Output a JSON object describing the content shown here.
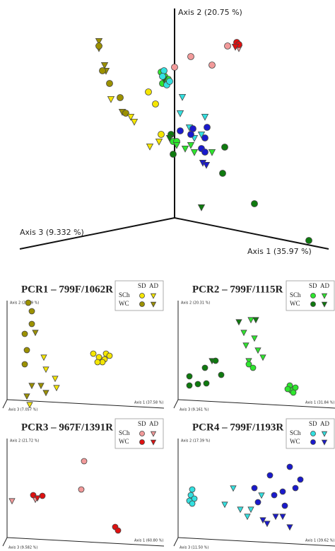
{
  "chart_data": [
    {
      "type": "scatter3d",
      "xlabel": "Axis 1 (35.97 %)",
      "ylabel": "Axis 2 (20.75 %)",
      "zlabel": "Axis 3 (9.332 %)",
      "xlim": [
        0,
        470
      ],
      "ylim": [
        0,
        360
      ],
      "series": [
        {
          "color": "#9c9100",
          "marker": "triangle",
          "x": [
            140,
            140,
            148,
            150,
            173
          ],
          "y": [
            302,
            292,
            268,
            260,
            202
          ]
        },
        {
          "color": "#9c9100",
          "marker": "circle",
          "x": [
            140,
            145,
            155,
            170,
            178
          ],
          "y": [
            295,
            260,
            242,
            222,
            200
          ]
        },
        {
          "color": "#f5e600",
          "marker": "circle",
          "x": [
            210,
            220,
            228
          ],
          "y": [
            230,
            213,
            170
          ]
        },
        {
          "color": "#f5e600",
          "marker": "triangle",
          "x": [
            157,
            185,
            190,
            212,
            225
          ],
          "y": [
            220,
            195,
            188,
            153,
            160
          ]
        },
        {
          "color": "#2ee62e",
          "marker": "circle",
          "x": [
            228,
            233,
            238,
            230,
            245,
            250
          ],
          "y": [
            258,
            252,
            248,
            242,
            160,
            160
          ]
        },
        {
          "color": "#2ee62e",
          "marker": "triangle",
          "x": [
            250,
            262,
            270,
            275,
            300
          ],
          "y": [
            155,
            150,
            155,
            145,
            145
          ]
        },
        {
          "color": "#0f7a0f",
          "marker": "circle",
          "x": [
            245,
            318,
            315,
            360,
            437,
            242
          ],
          "y": [
            142,
            152,
            115,
            72,
            20,
            170
          ]
        },
        {
          "color": "#0f7a0f",
          "marker": "triangle",
          "x": [
            285,
            232,
            240
          ],
          "y": [
            67,
            248,
            165
          ]
        },
        {
          "color": "#33e0e0",
          "marker": "circle",
          "x": [
            232,
            230,
            236,
            240
          ],
          "y": [
            260,
            252,
            240,
            245
          ]
        },
        {
          "color": "#33e0e0",
          "marker": "triangle",
          "x": [
            258,
            290,
            255,
            275,
            285,
            268
          ],
          "y": [
            223,
            195,
            200,
            165,
            170,
            180
          ]
        },
        {
          "color": "#1a1acc",
          "marker": "circle",
          "x": [
            255,
            273,
            290,
            293,
            285,
            290,
            270
          ],
          "y": [
            175,
            178,
            165,
            180,
            150,
            145,
            170
          ]
        },
        {
          "color": "#1a1acc",
          "marker": "triangle",
          "x": [
            287,
            292
          ],
          "y": [
            130,
            127
          ]
        },
        {
          "color": "#f29a9a",
          "marker": "circle",
          "x": [
            270,
            247,
            300,
            322
          ],
          "y": [
            280,
            265,
            268,
            295
          ]
        },
        {
          "color": "#f29a9a",
          "marker": "triangle",
          "x": [
            338
          ],
          "y": [
            292
          ]
        },
        {
          "color": "#e01010",
          "marker": "circle",
          "x": [
            335,
            338
          ],
          "y": [
            300,
            297
          ]
        },
        {
          "color": "#e01010",
          "marker": "triangle",
          "x": [
            333
          ],
          "y": [
            294
          ]
        }
      ]
    },
    {
      "type": "scatter3d",
      "title": "PCR1 – 799F/1062R",
      "xlabel": "Axis 1 (37.58 %)",
      "ylabel": "Axis 2 (27.99 %)",
      "zlabel": "Axis 3 (7.057 %)",
      "xlim": [
        0,
        232
      ],
      "ylim": [
        0,
        160
      ],
      "legend": {
        "columns": [
          "SD",
          "AD"
        ],
        "rows": [
          "SCh",
          "WC"
        ],
        "colors": [
          [
            "#f5e600",
            "#f5e600"
          ],
          [
            "#9c9100",
            "#9c9100"
          ]
        ]
      },
      "series": [
        {
          "color": "#9c9100",
          "marker": "circle",
          "x": [
            40,
            45,
            45,
            35,
            38,
            35
          ],
          "y": [
            147,
            135,
            117,
            103,
            80,
            60
          ]
        },
        {
          "color": "#9c9100",
          "marker": "triangle",
          "x": [
            50,
            58,
            65,
            45,
            38
          ],
          "y": [
            105,
            30,
            20,
            30,
            15
          ]
        },
        {
          "color": "#f5e600",
          "marker": "triangle",
          "x": [
            62,
            65,
            78,
            80,
            42
          ],
          "y": [
            70,
            53,
            40,
            27,
            3
          ]
        },
        {
          "color": "#f5e600",
          "marker": "circle",
          "x": [
            132,
            140,
            150,
            148,
            155,
            145,
            138
          ],
          "y": [
            75,
            70,
            75,
            67,
            72,
            63,
            63
          ]
        }
      ]
    },
    {
      "type": "scatter3d",
      "title": "PCR2 – 799F/1115R",
      "xlabel": "Axis 1 (31.84 %)",
      "ylabel": "Axis 2 (20.31 %)",
      "zlabel": "Axis 3 (9.161 %)",
      "xlim": [
        0,
        232
      ],
      "ylim": [
        0,
        160
      ],
      "legend": {
        "columns": [
          "SD",
          "AD"
        ],
        "rows": [
          "SCh",
          "WC"
        ],
        "colors": [
          [
            "#2ee62e",
            "#2ee62e"
          ],
          [
            "#0f7a0f",
            "#0f7a0f"
          ]
        ]
      },
      "series": [
        {
          "color": "#2ee62e",
          "marker": "triangle",
          "x": [
            113,
            103,
            118,
            106,
            123,
            110,
            130
          ],
          "y": [
            123,
            105,
            97,
            87,
            80,
            65,
            70
          ]
        },
        {
          "color": "#2ee62e",
          "marker": "circle",
          "x": [
            110,
            116,
            168,
            170,
            176,
            165,
            173
          ],
          "y": [
            60,
            55,
            30,
            23,
            27,
            25,
            20
          ]
        },
        {
          "color": "#0f7a0f",
          "marker": "triangle",
          "x": [
            96,
            120,
            58
          ],
          "y": [
            120,
            123,
            65
          ]
        },
        {
          "color": "#0f7a0f",
          "marker": "circle",
          "x": [
            26,
            38,
            48,
            63,
            71,
            50,
            26
          ],
          "y": [
            43,
            32,
            55,
            65,
            45,
            33,
            30
          ]
        }
      ]
    },
    {
      "type": "scatter3d",
      "title": "PCR3 – 967F/1391R",
      "xlabel": "Axis 1 (60.80 %)",
      "ylabel": "Axis 2 (21.72 %)",
      "zlabel": "Axis 3 (9.582 %)",
      "xlim": [
        0,
        232
      ],
      "ylim": [
        0,
        160
      ],
      "legend": {
        "columns": [
          "SD",
          "AD"
        ],
        "rows": [
          "SCh",
          "WC"
        ],
        "colors": [
          [
            "#f29a9a",
            "#f29a9a"
          ],
          [
            "#e01010",
            "#e01010"
          ]
        ]
      },
      "series": [
        {
          "color": "#f29a9a",
          "marker": "circle",
          "x": [
            119,
            115
          ],
          "y": [
            118,
            78
          ]
        },
        {
          "color": "#f29a9a",
          "marker": "triangle",
          "x": [
            17,
            50
          ],
          "y": [
            62,
            64
          ]
        },
        {
          "color": "#e01010",
          "marker": "circle",
          "x": [
            47,
            60,
            163,
            167
          ],
          "y": [
            70,
            69,
            25,
            20
          ]
        },
        {
          "color": "#e01010",
          "marker": "triangle",
          "x": [
            53
          ],
          "y": [
            66
          ]
        }
      ]
    },
    {
      "type": "scatter3d",
      "title": "PCR4 – 799F/1193R",
      "xlabel": "Axis 1 (39.62 %)",
      "ylabel": "Axis 2 (17.39 %)",
      "zlabel": "Axis 3 (11.50 %)",
      "xlim": [
        0,
        232
      ],
      "ylim": [
        0,
        160
      ],
      "legend": {
        "columns": [
          "SD",
          "AD"
        ],
        "rows": [
          "SCh",
          "WC"
        ],
        "colors": [
          [
            "#33e0e0",
            "#33e0e0"
          ],
          [
            "#1a1acc",
            "#1a1acc"
          ]
        ]
      },
      "series": [
        {
          "color": "#33e0e0",
          "marker": "circle",
          "x": [
            30,
            28,
            33,
            26,
            30
          ],
          "y": [
            78,
            70,
            65,
            62,
            58
          ]
        },
        {
          "color": "#33e0e0",
          "marker": "triangle",
          "x": [
            88,
            76,
            98,
            108,
            113,
            128
          ],
          "y": [
            80,
            57,
            50,
            40,
            50,
            70
          ]
        },
        {
          "color": "#1a1acc",
          "marker": "circle",
          "x": [
            118,
            123,
            146,
            140,
            168,
            183,
            176,
            161,
            158
          ],
          "y": [
            80,
            60,
            70,
            98,
            110,
            92,
            80,
            55,
            75
          ]
        },
        {
          "color": "#1a1acc",
          "marker": "triangle",
          "x": [
            130,
            136,
            158,
            168,
            148
          ],
          "y": [
            35,
            30,
            40,
            25,
            40
          ]
        }
      ]
    }
  ]
}
